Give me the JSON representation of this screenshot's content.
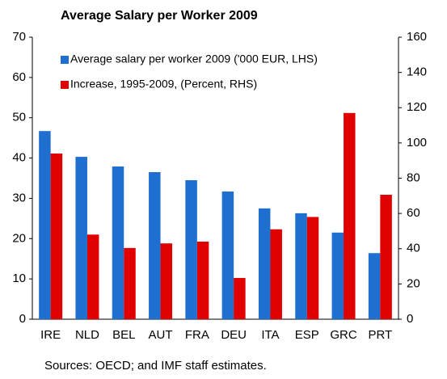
{
  "chart_data": {
    "type": "bar",
    "title": "Average Salary per Worker 2009",
    "source": "Sources: OECD; and IMF staff estimates.",
    "categories": [
      "IRE",
      "NLD",
      "BEL",
      "AUT",
      "FRA",
      "DEU",
      "ITA",
      "ESP",
      "GRC",
      "PRT"
    ],
    "series": [
      {
        "name": "Average salary per worker 2009 ('000 EUR, LHS)",
        "color": "#1f6fd0",
        "values": [
          46.7,
          40.3,
          37.9,
          36.5,
          34.5,
          31.7,
          27.5,
          26.3,
          21.5,
          16.4
        ]
      },
      {
        "name": "Increase, 1995-2009, (Percent, RHS)",
        "color": "#e00000",
        "axis": "y2",
        "values": [
          94,
          48,
          40.4,
          43,
          44,
          23.4,
          51,
          58,
          117,
          70.6
        ]
      }
    ],
    "ylim": [
      0,
      70
    ],
    "yticks": [
      0,
      10,
      20,
      30,
      40,
      50,
      60,
      70
    ],
    "y2lim": [
      0,
      160
    ],
    "y2ticks": [
      0,
      20,
      40,
      60,
      80,
      100,
      120,
      140,
      160
    ],
    "legend": "upper left",
    "grid": false
  }
}
